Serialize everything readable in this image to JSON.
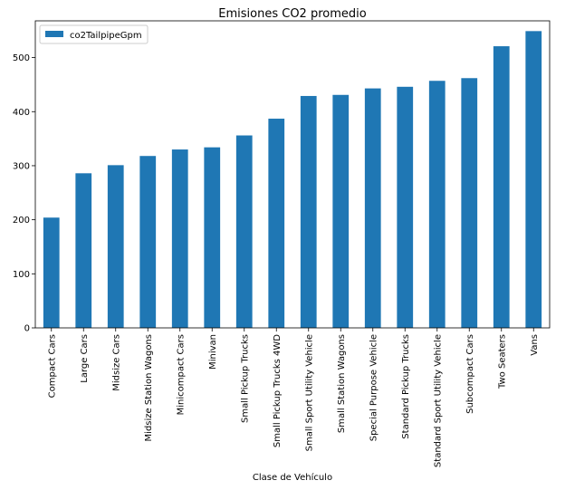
{
  "chart_data": {
    "type": "bar",
    "title": "Emisiones CO2 promedio",
    "xlabel": "Clase de Vehículo",
    "ylabel": "",
    "categories": [
      "Compact Cars",
      "Large Cars",
      "Midsize Cars",
      "Midsize Station Wagons",
      "Minicompact Cars",
      "Minivan",
      "Small Pickup Trucks",
      "Small Pickup Trucks 4WD",
      "Small Sport Utility Vehicle",
      "Small Station Wagons",
      "Special Purpose Vehicle",
      "Standard Pickup Trucks",
      "Standard Sport Utility Vehicle",
      "Subcompact Cars",
      "Two Seaters",
      "Vans"
    ],
    "series": [
      {
        "name": "co2TailpipeGpm",
        "color": "#1f77b4",
        "values": [
          204,
          286,
          301,
          318,
          330,
          334,
          356,
          387,
          429,
          431,
          443,
          446,
          457,
          462,
          521,
          549
        ]
      }
    ],
    "ylim": [
      0,
      568
    ],
    "yticks": [
      0,
      100,
      200,
      300,
      400,
      500
    ],
    "grid": false,
    "legend_position": "top-left"
  }
}
